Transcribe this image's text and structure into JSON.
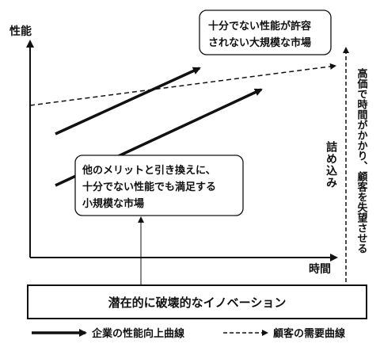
{
  "axes": {
    "y_label": "性能",
    "x_label": "時間"
  },
  "callout_top": {
    "line1": "十分でない性能が許容",
    "line2": "されない大規模な市場"
  },
  "callout_bottom": {
    "line1": "他のメリットと引き換えに、",
    "line2": "十分でない性能でも満足する",
    "line3": "小規模な市場"
  },
  "vertical_labels": {
    "stuck": "詰め込み",
    "lost": "高価で時間がかかり、顧客を失望させる"
  },
  "bottom_box": {
    "label": "潜在的に破壊的なイノベーション"
  },
  "legend": {
    "solid_label": "企業の性能向上曲線",
    "dashed_label": "顧客の需要曲線"
  },
  "colors": {
    "stroke": "#111111",
    "callout_fill": "#ffffff",
    "background": "#ffffff"
  }
}
